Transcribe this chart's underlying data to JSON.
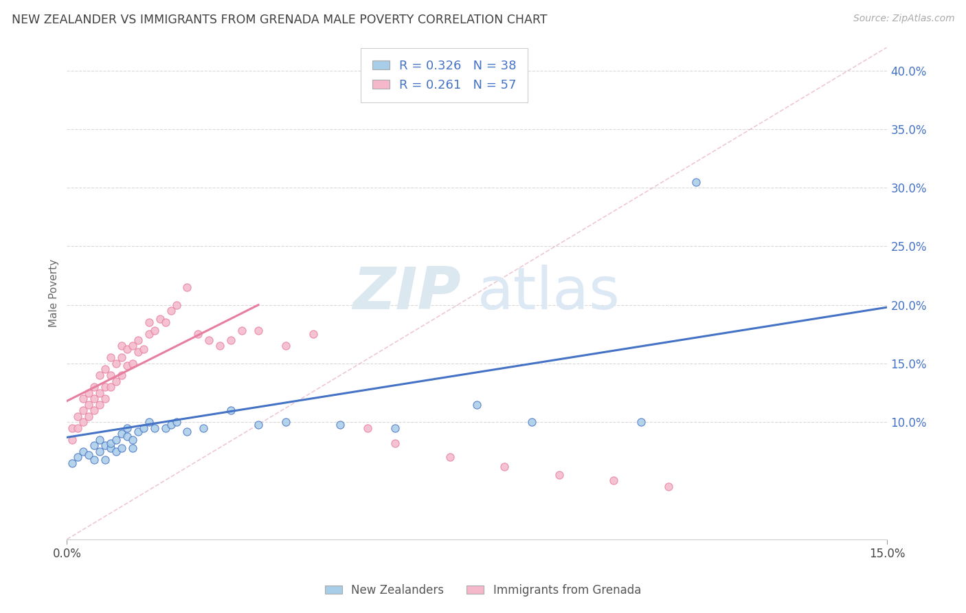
{
  "title": "NEW ZEALANDER VS IMMIGRANTS FROM GRENADA MALE POVERTY CORRELATION CHART",
  "source": "Source: ZipAtlas.com",
  "ylabel": "Male Poverty",
  "xlim": [
    0.0,
    0.15
  ],
  "ylim": [
    0.0,
    0.42
  ],
  "bg_color": "#ffffff",
  "grid_color": "#d0d0d0",
  "legend1_r": "0.326",
  "legend1_n": "38",
  "legend2_r": "0.261",
  "legend2_n": "57",
  "legend_label1": "New Zealanders",
  "legend_label2": "Immigrants from Grenada",
  "color_blue": "#a8cde8",
  "color_pink": "#f4b8ca",
  "color_blue_line": "#4472c4",
  "color_pink_line": "#e87da0",
  "color_text": "#4472c4",
  "color_title": "#404040",
  "nz_x": [
    0.001,
    0.002,
    0.003,
    0.004,
    0.005,
    0.005,
    0.006,
    0.006,
    0.007,
    0.007,
    0.008,
    0.008,
    0.009,
    0.009,
    0.01,
    0.01,
    0.011,
    0.011,
    0.012,
    0.012,
    0.013,
    0.014,
    0.015,
    0.016,
    0.018,
    0.019,
    0.02,
    0.022,
    0.025,
    0.03,
    0.035,
    0.04,
    0.05,
    0.06,
    0.075,
    0.085,
    0.105,
    0.115
  ],
  "nz_y": [
    0.065,
    0.07,
    0.075,
    0.072,
    0.08,
    0.068,
    0.075,
    0.085,
    0.08,
    0.068,
    0.078,
    0.082,
    0.075,
    0.085,
    0.09,
    0.078,
    0.088,
    0.095,
    0.085,
    0.078,
    0.092,
    0.095,
    0.1,
    0.095,
    0.095,
    0.098,
    0.1,
    0.092,
    0.095,
    0.11,
    0.098,
    0.1,
    0.098,
    0.095,
    0.115,
    0.1,
    0.1,
    0.305
  ],
  "grenada_x": [
    0.001,
    0.001,
    0.002,
    0.002,
    0.003,
    0.003,
    0.003,
    0.004,
    0.004,
    0.004,
    0.005,
    0.005,
    0.005,
    0.006,
    0.006,
    0.006,
    0.007,
    0.007,
    0.007,
    0.008,
    0.008,
    0.008,
    0.009,
    0.009,
    0.01,
    0.01,
    0.01,
    0.011,
    0.011,
    0.012,
    0.012,
    0.013,
    0.013,
    0.014,
    0.015,
    0.015,
    0.016,
    0.017,
    0.018,
    0.019,
    0.02,
    0.022,
    0.024,
    0.026,
    0.028,
    0.03,
    0.032,
    0.035,
    0.04,
    0.045,
    0.055,
    0.06,
    0.07,
    0.08,
    0.09,
    0.1,
    0.11
  ],
  "grenada_y": [
    0.085,
    0.095,
    0.095,
    0.105,
    0.1,
    0.11,
    0.12,
    0.105,
    0.115,
    0.125,
    0.11,
    0.12,
    0.13,
    0.115,
    0.125,
    0.14,
    0.12,
    0.13,
    0.145,
    0.13,
    0.14,
    0.155,
    0.135,
    0.15,
    0.14,
    0.155,
    0.165,
    0.148,
    0.162,
    0.15,
    0.165,
    0.16,
    0.17,
    0.162,
    0.175,
    0.185,
    0.178,
    0.188,
    0.185,
    0.195,
    0.2,
    0.215,
    0.175,
    0.17,
    0.165,
    0.17,
    0.178,
    0.178,
    0.165,
    0.175,
    0.095,
    0.082,
    0.07,
    0.062,
    0.055,
    0.05,
    0.045
  ],
  "nz_line_x": [
    0.0,
    0.15
  ],
  "nz_line_y": [
    0.087,
    0.198
  ],
  "gr_line_x": [
    0.0,
    0.035
  ],
  "gr_line_y": [
    0.118,
    0.2
  ],
  "ref_line_x": [
    0.0,
    0.15
  ],
  "ref_line_y": [
    0.0,
    0.42
  ]
}
